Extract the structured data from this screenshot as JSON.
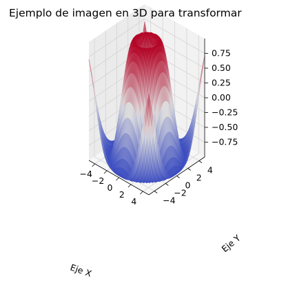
{
  "chart_data": {
    "type": "surface3d",
    "title": "Ejemplo de imagen en 3D para transformar",
    "xlabel": "Eje X",
    "ylabel": "Eje Y",
    "zlabel": "",
    "function": "z = sin(sqrt(x^2 + y^2))",
    "xlim": [
      -5,
      5
    ],
    "ylim": [
      -5,
      5
    ],
    "zlim": [
      -1,
      1
    ],
    "x_ticks": [
      -4,
      -2,
      0,
      2,
      4
    ],
    "y_ticks": [
      -4,
      -2,
      0,
      2,
      4
    ],
    "z_ticks": [
      0.75,
      0.5,
      0.25,
      0.0,
      -0.25,
      -0.5,
      -0.75
    ],
    "x_tick_labels": [
      "−4",
      "−2",
      "0",
      "2",
      "4"
    ],
    "y_tick_labels": [
      "−4",
      "−2",
      "0",
      "2",
      "4"
    ],
    "z_tick_labels": [
      "0.75",
      "0.50",
      "0.25",
      "0.00",
      "−0.25",
      "−0.50",
      "−0.75"
    ],
    "colormap": "coolwarm",
    "colormap_low": "#3b4cc0",
    "colormap_mid": "#dddddd",
    "colormap_high": "#b40426",
    "grid": true,
    "pane_color": "#f2f2f2",
    "grid_color": "#d4d4d4"
  }
}
